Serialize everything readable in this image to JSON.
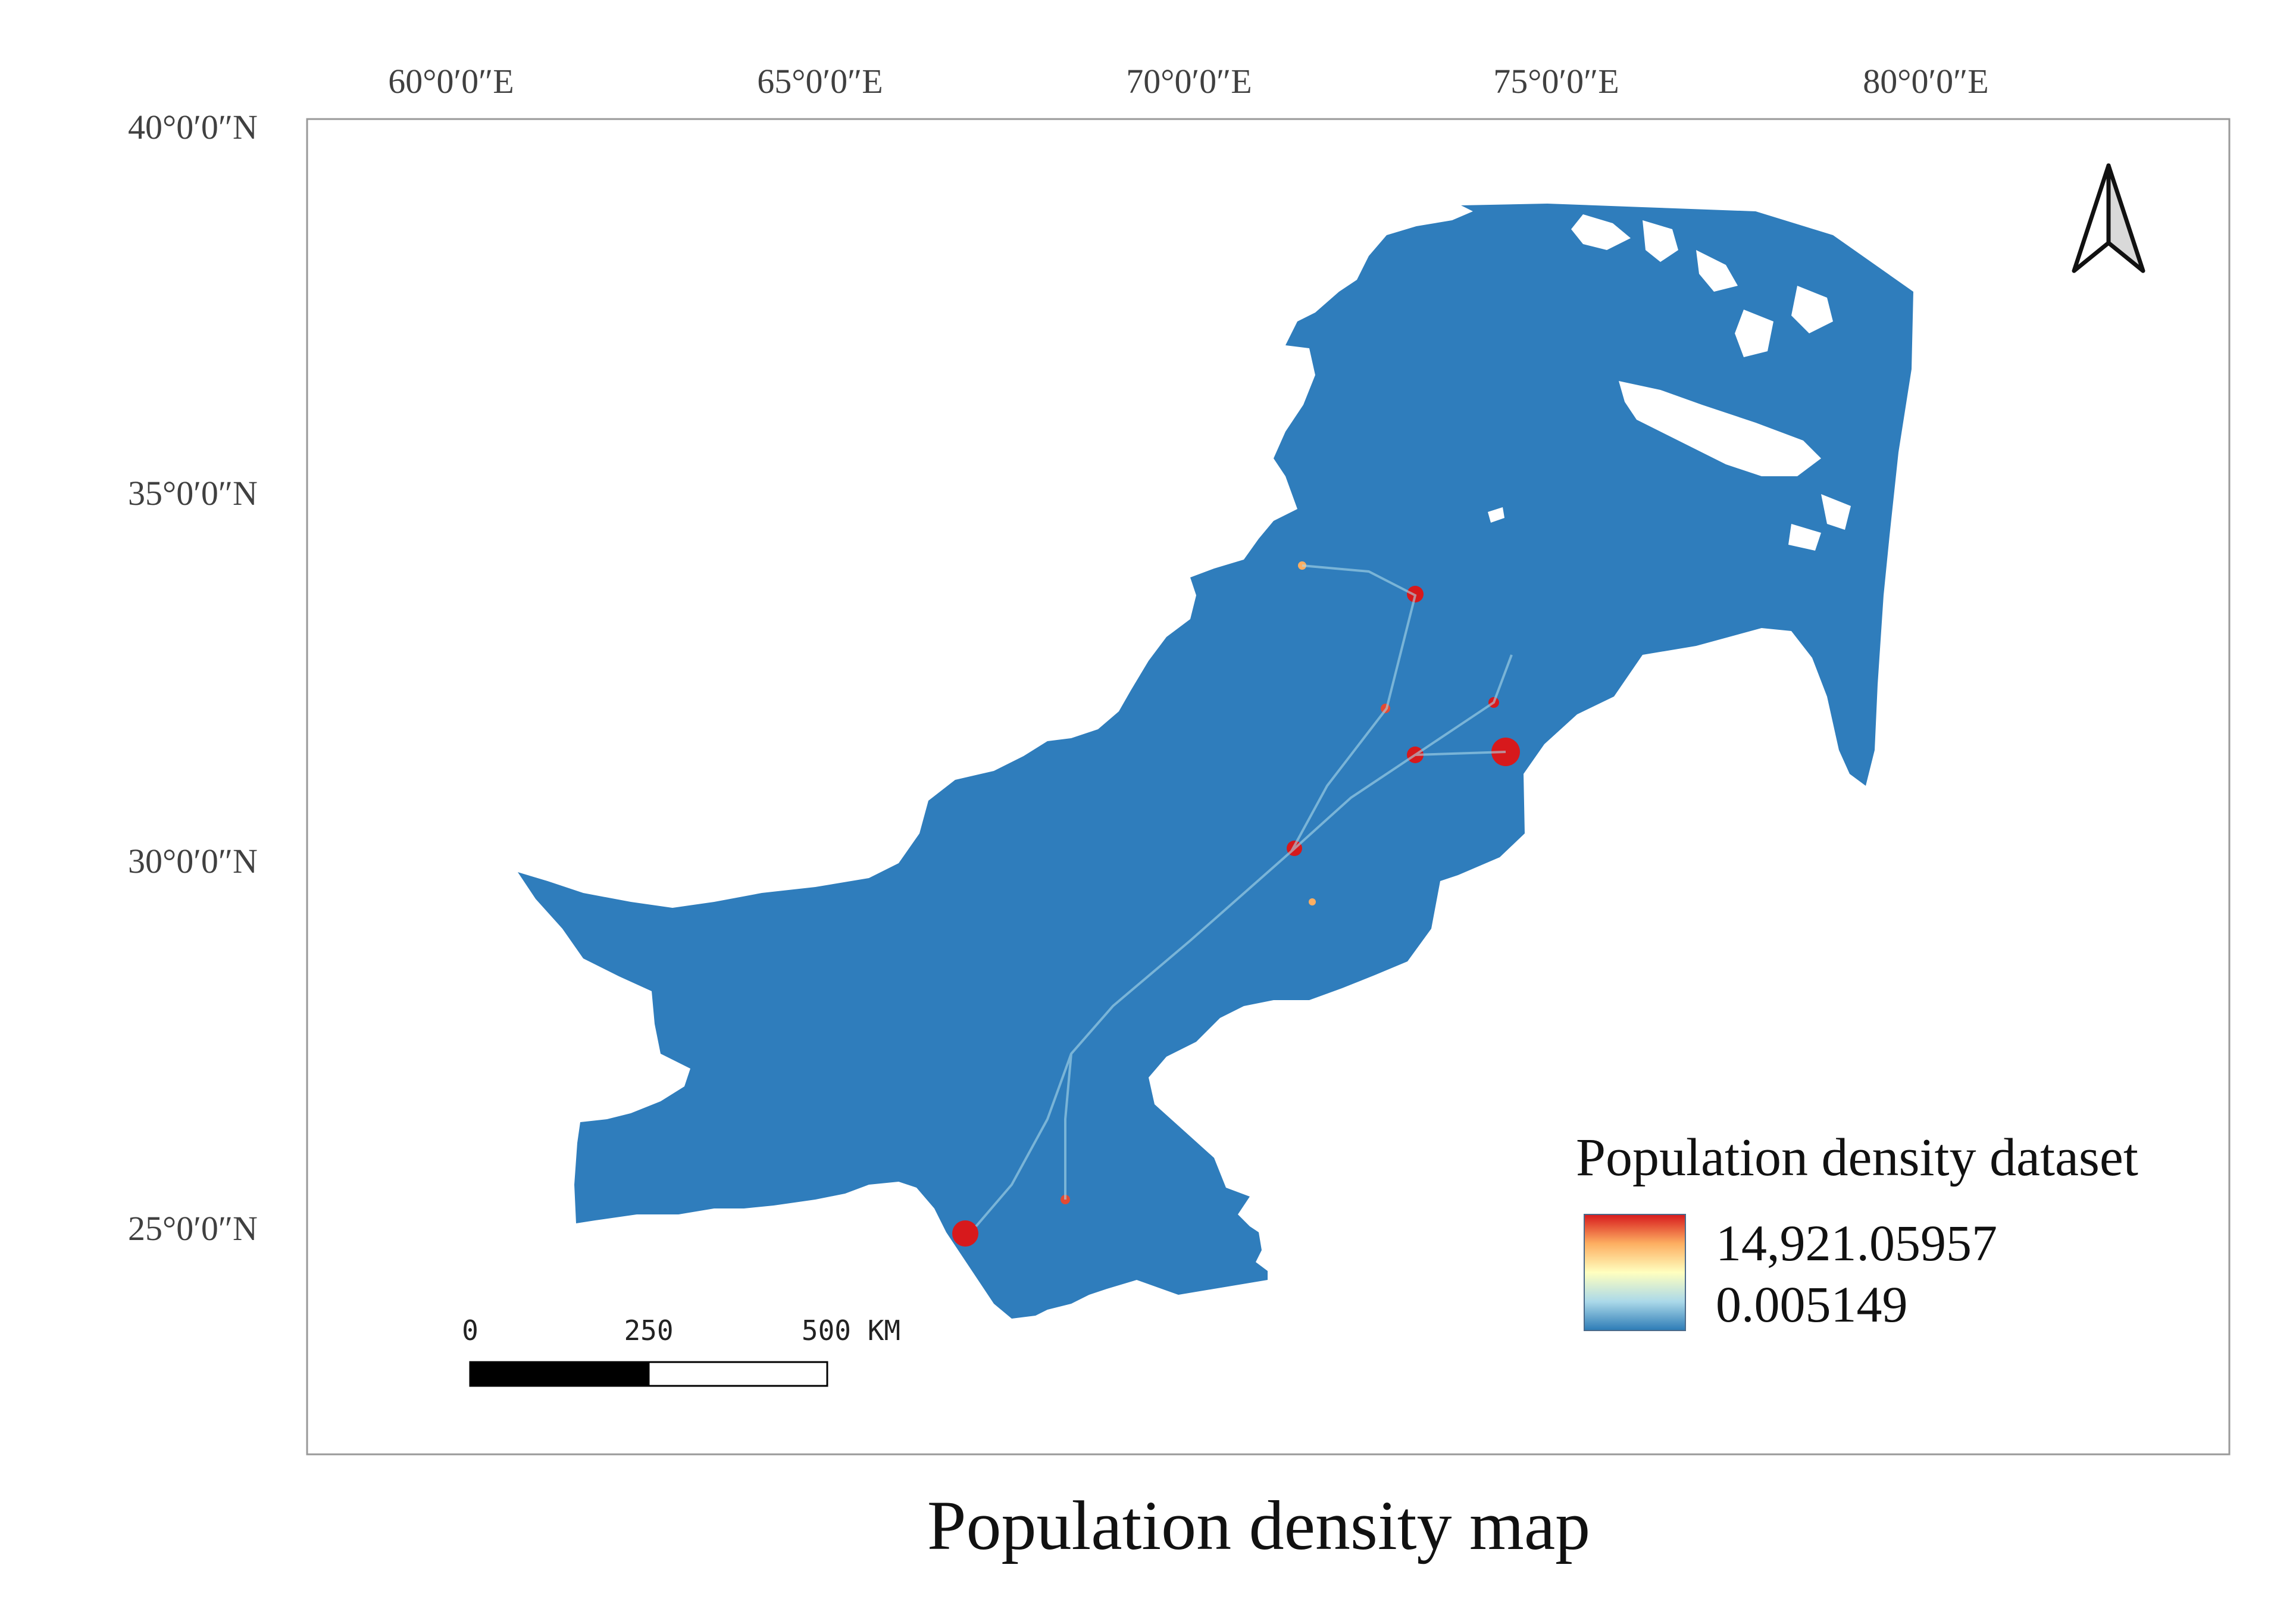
{
  "map": {
    "title": "Population density map",
    "longitude_labels": [
      "60°0′0″E",
      "65°0′0″E",
      "70°0′0″E",
      "75°0′0″E",
      "80°0′0″E"
    ],
    "latitude_labels": [
      "40°0′0″N",
      "35°0′0″N",
      "30°0′0″N",
      "25°0′0″N"
    ],
    "land_color": "#2F7DBC",
    "frame_color": "#999999"
  },
  "legend": {
    "title": "Population density dataset",
    "max_label": "14,921.05957",
    "min_label": "0.005149",
    "ramp_colors": [
      "#D7191C",
      "#FDAE61",
      "#FFFFBF",
      "#ABD9E9",
      "#2C7BB6"
    ]
  },
  "scale_bar": {
    "labels": [
      "0",
      "250",
      "500 KM"
    ]
  },
  "north_arrow": {
    "icon": "north-arrow-icon"
  }
}
